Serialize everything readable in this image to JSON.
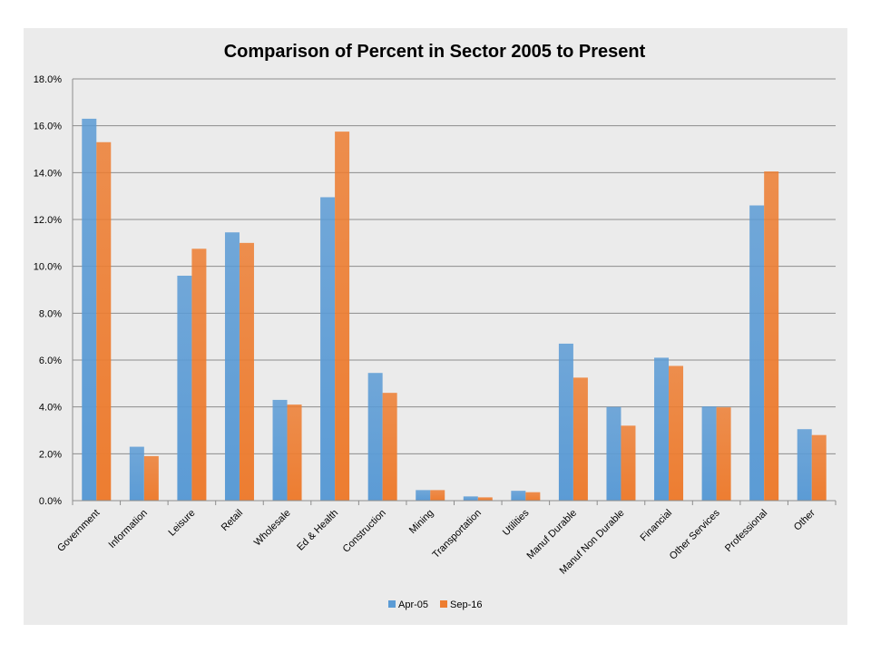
{
  "chart_data": {
    "type": "bar",
    "title": "Comparison of Percent in Sector 2005 to Present",
    "categories": [
      "Government",
      "Information",
      "Leisure",
      "Retail",
      "Wholesale",
      "Ed & Health",
      "Construction",
      "Mining",
      "Transportation",
      "Utilities",
      "Manuf Durable",
      "Manuf Non Durable",
      "Financial",
      "Other Services",
      "Professional",
      "Other"
    ],
    "series": [
      {
        "name": "Apr-05",
        "color": "#5b9bd5",
        "values": [
          16.3,
          2.3,
          9.6,
          11.45,
          4.3,
          12.95,
          5.45,
          0.45,
          0.18,
          0.42,
          6.7,
          4.0,
          6.1,
          4.02,
          12.6,
          3.05
        ]
      },
      {
        "name": "Sep-16",
        "color": "#ed7d31",
        "values": [
          15.3,
          1.9,
          10.75,
          11.0,
          4.1,
          15.75,
          4.6,
          0.45,
          0.14,
          0.36,
          5.25,
          3.2,
          5.75,
          3.98,
          14.05,
          2.8
        ]
      }
    ],
    "ylim": [
      0,
      18
    ],
    "yticks": [
      "0.0%",
      "2.0%",
      "4.0%",
      "6.0%",
      "8.0%",
      "10.0%",
      "12.0%",
      "14.0%",
      "16.0%",
      "18.0%"
    ],
    "xlabel": "",
    "ylabel": "",
    "grid": true,
    "legend": "bottom"
  }
}
